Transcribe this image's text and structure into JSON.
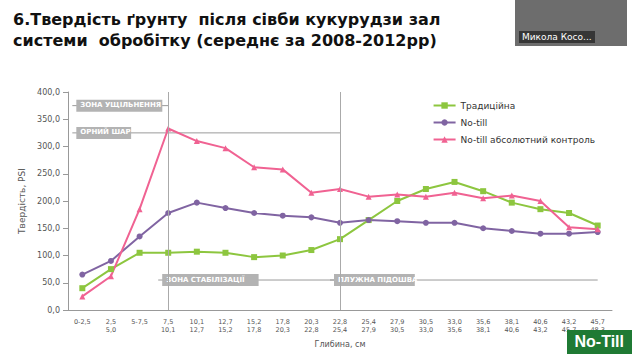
{
  "chart_data": {
    "type": "line",
    "title": "6.Твердість ґрунту  після сівби кукурудзи зал\nсистеми  обробітку (середнє за 2008-2012рр)",
    "x_label": "Глибина, см",
    "y_label": "Твердість, PSI",
    "categories": [
      "0-2,5",
      "2,5\n5,0",
      "5-7,5",
      "7,5\n10,1",
      "10,1\n12,7",
      "12,7\n15,2",
      "15,2\n17,8",
      "17,8\n20,3",
      "20,3\n22,8",
      "22,8\n25,4",
      "25,4\n27,9",
      "27,9\n30,5",
      "30,5\n33,0",
      "33,0\n35,6",
      "35,6\n38,1",
      "38,1\n40,6",
      "40,6\n43,2",
      "43,2\n45,7",
      "45,7\n48,3"
    ],
    "series": [
      {
        "name": "Традиційна",
        "color": "#8dc63f",
        "marker": "square",
        "values": [
          40,
          75,
          105,
          105,
          107,
          105,
          97,
          100,
          110,
          130,
          165,
          200,
          222,
          235,
          218,
          197,
          185,
          178,
          155
        ]
      },
      {
        "name": "No-till",
        "color": "#8064a2",
        "marker": "circle",
        "values": [
          65,
          90,
          135,
          178,
          197,
          187,
          178,
          173,
          170,
          160,
          165,
          163,
          160,
          160,
          150,
          145,
          140,
          140,
          143
        ]
      },
      {
        "name": "No-till абсолютний контроль",
        "color": "#f06292",
        "marker": "triangle",
        "values": [
          25,
          62,
          185,
          333,
          310,
          297,
          262,
          258,
          215,
          222,
          208,
          212,
          208,
          215,
          205,
          210,
          200,
          152,
          148
        ]
      }
    ],
    "ylim": [
      0,
      400
    ],
    "yticks": [
      {
        "value": 0,
        "label": "0,0"
      },
      {
        "value": 50,
        "label": "50,0"
      },
      {
        "value": 100,
        "label": "100,0"
      },
      {
        "value": 150,
        "label": "150,0"
      },
      {
        "value": 200,
        "label": "200,0"
      },
      {
        "value": 250,
        "label": "250,0"
      },
      {
        "value": 300,
        "label": "300,0"
      },
      {
        "value": 350,
        "label": "350,0"
      },
      {
        "value": 400,
        "label": "400,0"
      }
    ],
    "grid": false,
    "legend": "top-right",
    "annotations": [
      "ЗОНА УЩІЛЬНЕННЯ",
      "ОРНИЙ ШАР",
      "ЗОНА СТАБІЛІЗАЦІЇ",
      "ПЛУЖНА ПІДОШВА"
    ]
  },
  "speaker": "Микола Косо...",
  "logo": "No-Till"
}
